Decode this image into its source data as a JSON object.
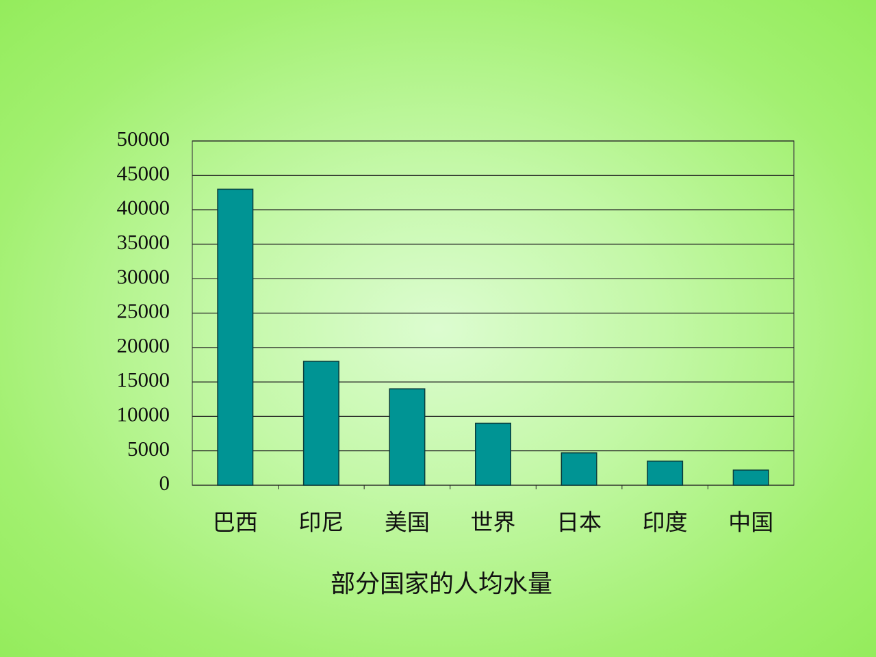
{
  "chart_data": {
    "type": "bar",
    "title": "部分国家的人均水量",
    "categories": [
      "巴西",
      "印尼",
      "美国",
      "世界",
      "日本",
      "印度",
      "中国"
    ],
    "values": [
      43000,
      18000,
      14000,
      9000,
      4700,
      3500,
      2200
    ],
    "color": "#009494",
    "ylim": [
      0,
      50000
    ],
    "yticks": [
      0,
      5000,
      10000,
      15000,
      20000,
      25000,
      30000,
      35000,
      40000,
      45000,
      50000
    ],
    "grid": true
  }
}
